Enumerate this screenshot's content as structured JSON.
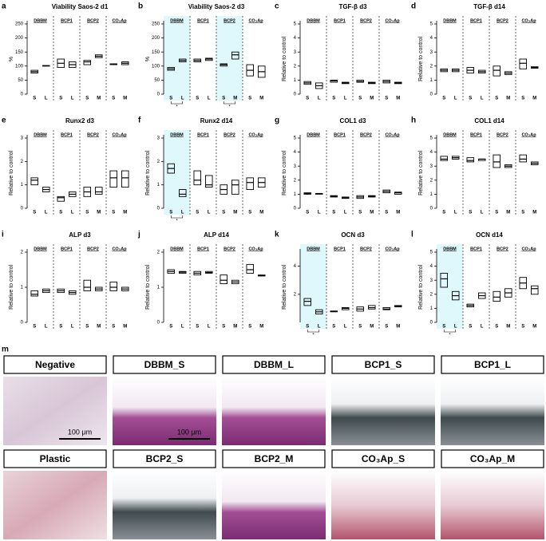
{
  "chart_data": [
    {
      "type": "floating_bar",
      "label": "a",
      "title": "Viability Saos-2 d1",
      "ylabel": "%",
      "ylim": [
        0,
        250
      ],
      "yticks": [
        0,
        50,
        100,
        150,
        200,
        250
      ],
      "groups": [
        "DBBM",
        "BCP1",
        "BCP2",
        "CO₃Ap"
      ],
      "categories": [
        "S",
        "L",
        "S",
        "L",
        "S",
        "M",
        "S",
        "M"
      ],
      "low": [
        75,
        100,
        95,
        95,
        105,
        130,
        105,
        105
      ],
      "median": [
        80,
        101,
        110,
        105,
        115,
        135,
        107,
        110
      ],
      "high": [
        85,
        102,
        125,
        115,
        120,
        140,
        108,
        115
      ],
      "highlight": [],
      "annotations": []
    },
    {
      "type": "floating_bar",
      "label": "b",
      "title": "Viability Saos-2 d3",
      "ylabel": "%",
      "ylim": [
        0,
        250
      ],
      "yticks": [
        0,
        50,
        100,
        150,
        200,
        250
      ],
      "groups": [
        "DBBM",
        "BCP1",
        "BCP2",
        "CO₃Ap"
      ],
      "categories": [
        "S",
        "L",
        "S",
        "L",
        "S",
        "M",
        "S",
        "M"
      ],
      "low": [
        85,
        115,
        115,
        120,
        100,
        125,
        65,
        60
      ],
      "median": [
        90,
        120,
        120,
        125,
        105,
        140,
        85,
        80
      ],
      "high": [
        95,
        125,
        125,
        128,
        108,
        150,
        105,
        100
      ],
      "highlight": [
        0,
        2
      ],
      "annotations": [
        {
          "group": 0,
          "text": "*"
        },
        {
          "group": 2,
          "text": "*"
        }
      ]
    },
    {
      "type": "floating_bar",
      "label": "c",
      "title": "TGF-β d3",
      "ylabel": "Relative to control",
      "ylim": [
        0,
        5
      ],
      "yticks": [
        0,
        1,
        2,
        3,
        4,
        5
      ],
      "groups": [
        "DBBM",
        "BCP1",
        "BCP2",
        "CO₃Ap"
      ],
      "categories": [
        "S",
        "L",
        "S",
        "L",
        "S",
        "M",
        "S",
        "M"
      ],
      "low": [
        0.7,
        0.4,
        0.85,
        0.75,
        0.85,
        0.75,
        0.8,
        0.75
      ],
      "median": [
        0.8,
        0.6,
        0.95,
        0.8,
        0.9,
        0.8,
        0.9,
        0.8
      ],
      "high": [
        0.9,
        0.8,
        1.0,
        0.85,
        1.0,
        0.85,
        1.0,
        0.85
      ],
      "highlight": [],
      "annotations": []
    },
    {
      "type": "floating_bar",
      "label": "d",
      "title": "TGF-β d14",
      "ylabel": "Relative to control",
      "ylim": [
        0,
        5
      ],
      "yticks": [
        0,
        1,
        2,
        3,
        4,
        5
      ],
      "groups": [
        "DBBM",
        "BCP1",
        "BCP2",
        "CO₃Ap"
      ],
      "categories": [
        "S",
        "L",
        "S",
        "L",
        "S",
        "M",
        "S",
        "M"
      ],
      "low": [
        1.6,
        1.6,
        1.5,
        1.5,
        1.3,
        1.4,
        1.8,
        1.85
      ],
      "median": [
        1.7,
        1.7,
        1.7,
        1.6,
        1.7,
        1.5,
        2.2,
        1.9
      ],
      "high": [
        1.8,
        1.8,
        1.9,
        1.7,
        2.0,
        1.6,
        2.5,
        1.95
      ],
      "highlight": [],
      "annotations": []
    },
    {
      "type": "floating_bar",
      "label": "e",
      "title": "Runx2 d3",
      "ylabel": "Relative to control",
      "ylim": [
        0,
        3
      ],
      "yticks": [
        0,
        1,
        2,
        3
      ],
      "groups": [
        "DBBM",
        "BCP1",
        "BCP2",
        "CO₃Ap"
      ],
      "categories": [
        "S",
        "L",
        "S",
        "L",
        "S",
        "M",
        "S",
        "M"
      ],
      "low": [
        1.0,
        0.7,
        0.3,
        0.5,
        0.5,
        0.6,
        0.9,
        0.9
      ],
      "median": [
        1.2,
        0.8,
        0.45,
        0.6,
        0.7,
        0.7,
        1.3,
        1.3
      ],
      "high": [
        1.3,
        0.9,
        0.5,
        0.7,
        0.9,
        0.9,
        1.6,
        1.6
      ],
      "highlight": [],
      "annotations": []
    },
    {
      "type": "floating_bar",
      "label": "f",
      "title": "Runx2 d14",
      "ylabel": "Relative to control",
      "ylim": [
        0,
        3
      ],
      "yticks": [
        0,
        1,
        2,
        3
      ],
      "groups": [
        "DBBM",
        "BCP1",
        "BCP2",
        "CO₃Ap"
      ],
      "categories": [
        "S",
        "L",
        "S",
        "L",
        "S",
        "M",
        "S",
        "M"
      ],
      "low": [
        1.5,
        0.5,
        1.0,
        0.9,
        0.6,
        0.6,
        0.8,
        0.9
      ],
      "median": [
        1.7,
        0.6,
        1.2,
        1.0,
        0.8,
        1.0,
        1.1,
        1.1
      ],
      "high": [
        1.9,
        0.8,
        1.6,
        1.4,
        1.0,
        1.2,
        1.3,
        1.3
      ],
      "highlight": [
        0
      ],
      "annotations": [
        {
          "group": 0,
          "text": "*"
        }
      ]
    },
    {
      "type": "floating_bar",
      "label": "g",
      "title": "COL1 d3",
      "ylabel": "Relative to control",
      "ylim": [
        0,
        5
      ],
      "yticks": [
        0,
        1,
        2,
        3,
        4,
        5
      ],
      "groups": [
        "DBBM",
        "BCP1",
        "BCP2",
        "CO₃Ap"
      ],
      "categories": [
        "S",
        "L",
        "S",
        "L",
        "S",
        "M",
        "S",
        "M"
      ],
      "low": [
        1.0,
        1.0,
        0.8,
        0.7,
        0.7,
        0.8,
        1.1,
        1.0
      ],
      "median": [
        1.05,
        1.05,
        0.85,
        0.75,
        0.8,
        0.85,
        1.2,
        1.1
      ],
      "high": [
        1.1,
        1.05,
        0.9,
        0.8,
        0.9,
        0.9,
        1.3,
        1.15
      ],
      "highlight": [],
      "annotations": []
    },
    {
      "type": "floating_bar",
      "label": "h",
      "title": "COL1 d14",
      "ylabel": "Relative to control",
      "ylim": [
        0,
        5
      ],
      "yticks": [
        0,
        1,
        2,
        3,
        4,
        5
      ],
      "groups": [
        "DBBM",
        "BCP1",
        "BCP2",
        "CO₃Ap"
      ],
      "categories": [
        "S",
        "L",
        "S",
        "L",
        "S",
        "M",
        "S",
        "M"
      ],
      "low": [
        3.4,
        3.5,
        3.3,
        3.4,
        2.9,
        2.9,
        3.3,
        3.1
      ],
      "median": [
        3.5,
        3.6,
        3.4,
        3.5,
        3.3,
        3.0,
        3.5,
        3.2
      ],
      "high": [
        3.7,
        3.7,
        3.6,
        3.5,
        3.8,
        3.1,
        3.8,
        3.3
      ],
      "highlight": [],
      "annotations": []
    },
    {
      "type": "floating_bar",
      "label": "i",
      "title": "ALP d3",
      "ylabel": "Relative to control",
      "ylim": [
        0,
        2
      ],
      "yticks": [
        0,
        1,
        2
      ],
      "groups": [
        "DBBM",
        "BCP1",
        "BCP2",
        "CO₃Ap"
      ],
      "categories": [
        "S",
        "L",
        "S",
        "L",
        "S",
        "M",
        "S",
        "M"
      ],
      "low": [
        0.75,
        0.85,
        0.85,
        0.8,
        0.9,
        0.9,
        0.9,
        0.9
      ],
      "median": [
        0.8,
        0.9,
        0.9,
        0.85,
        1.0,
        0.95,
        1.0,
        0.95
      ],
      "high": [
        0.9,
        0.95,
        0.95,
        0.9,
        1.2,
        1.0,
        1.15,
        1.0
      ],
      "highlight": [],
      "annotations": []
    },
    {
      "type": "floating_bar",
      "label": "j",
      "title": "ALP d14",
      "ylabel": "Relative to control",
      "ylim": [
        0,
        2
      ],
      "yticks": [
        0,
        1,
        2
      ],
      "groups": [
        "DBBM",
        "BCP1",
        "BCP2",
        "CO₃Ap"
      ],
      "categories": [
        "S",
        "L",
        "S",
        "L",
        "S",
        "M",
        "S",
        "M"
      ],
      "low": [
        1.4,
        1.4,
        1.35,
        1.4,
        1.1,
        1.1,
        1.4,
        1.32
      ],
      "median": [
        1.45,
        1.43,
        1.4,
        1.42,
        1.2,
        1.15,
        1.5,
        1.33
      ],
      "high": [
        1.5,
        1.45,
        1.45,
        1.45,
        1.35,
        1.2,
        1.65,
        1.35
      ],
      "highlight": [],
      "annotations": []
    },
    {
      "type": "floating_bar",
      "label": "k",
      "title": "OCN d3",
      "ylabel": "Relative to control",
      "ylim": [
        0,
        5
      ],
      "yticks": [
        2,
        4
      ],
      "groups": [
        "DBBM",
        "BCP1",
        "BCP2",
        "CO₃Ap"
      ],
      "categories": [
        "S",
        "L",
        "S",
        "L",
        "S",
        "M",
        "S",
        "M"
      ],
      "low": [
        1.2,
        0.6,
        0.75,
        0.9,
        0.8,
        0.95,
        0.9,
        1.1
      ],
      "median": [
        1.5,
        0.75,
        0.8,
        1.0,
        0.95,
        1.05,
        0.95,
        1.15
      ],
      "high": [
        1.7,
        0.9,
        0.8,
        1.05,
        1.1,
        1.2,
        1.05,
        1.2
      ],
      "highlight": [
        0
      ],
      "annotations": [
        {
          "group": 0,
          "text": "*"
        }
      ]
    },
    {
      "type": "floating_bar",
      "label": "l",
      "title": "OCN d14",
      "ylabel": "Relative to control",
      "ylim": [
        0,
        5
      ],
      "yticks": [
        0,
        1,
        2,
        3,
        4,
        5
      ],
      "groups": [
        "DBBM",
        "BCP1",
        "BCP2",
        "CO₃Ap"
      ],
      "categories": [
        "S",
        "L",
        "S",
        "L",
        "S",
        "M",
        "S",
        "M"
      ],
      "low": [
        2.5,
        1.6,
        1.1,
        1.7,
        1.5,
        1.8,
        2.4,
        2.0
      ],
      "median": [
        3.1,
        1.9,
        1.2,
        1.9,
        1.8,
        2.1,
        2.8,
        2.4
      ],
      "high": [
        3.5,
        2.2,
        1.3,
        2.1,
        2.2,
        2.4,
        3.2,
        2.6
      ],
      "highlight": [
        0
      ],
      "annotations": [
        {
          "group": 0,
          "text": "*"
        }
      ]
    }
  ],
  "panel_m": {
    "label": "m",
    "images": [
      {
        "title": "Negative",
        "scale_bar": "100 μm"
      },
      {
        "title": "DBBM_S",
        "scale_bar": "100 μm"
      },
      {
        "title": "DBBM_L"
      },
      {
        "title": "BCP1_S"
      },
      {
        "title": "BCP1_L"
      },
      {
        "title": "Plastic"
      },
      {
        "title": "BCP2_S"
      },
      {
        "title": "BCP2_M"
      },
      {
        "title": "CO₃Ap_S"
      },
      {
        "title": "CO₃Ap_M"
      }
    ]
  }
}
